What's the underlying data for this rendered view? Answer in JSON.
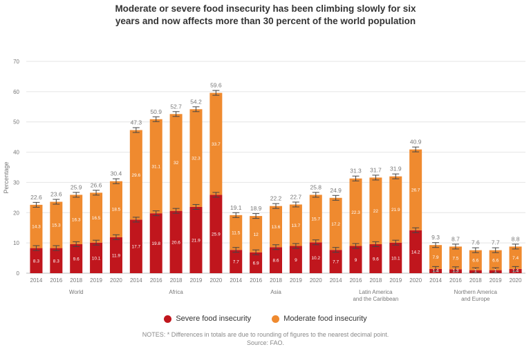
{
  "chart_data": {
    "type": "bar",
    "stacked": true,
    "title_line1": "Moderate or severe food insecurity has been climbing slowly for six",
    "title_line2": "years and now affects more than 30 percent of the world population",
    "ylabel": "Percentage",
    "ylim": [
      0,
      70
    ],
    "yticks": [
      0,
      10,
      20,
      30,
      40,
      50,
      60,
      70
    ],
    "grid": true,
    "legend_position": "bottom",
    "colors": {
      "severe": "#c0161d",
      "moderate": "#ef8a2f"
    },
    "series": [
      {
        "key": "severe",
        "name": "Severe food insecurity"
      },
      {
        "key": "moderate",
        "name": "Moderate food insecurity"
      }
    ],
    "groups": [
      {
        "label": [
          "World"
        ],
        "bars": [
          {
            "x": "2014",
            "severe": 8.3,
            "moderate": 14.3,
            "total": 22.6
          },
          {
            "x": "2016",
            "severe": 8.3,
            "moderate": 15.3,
            "total": 23.6
          },
          {
            "x": "2018",
            "severe": 9.6,
            "moderate": 16.3,
            "total": 25.9
          },
          {
            "x": "2019",
            "severe": 10.1,
            "moderate": 16.5,
            "total": 26.6
          },
          {
            "x": "2020",
            "severe": 11.9,
            "moderate": 18.5,
            "total": 30.4
          }
        ]
      },
      {
        "label": [
          "Africa"
        ],
        "bars": [
          {
            "x": "2014",
            "severe": 17.7,
            "moderate": 29.6,
            "total": 47.3
          },
          {
            "x": "2016",
            "severe": 19.8,
            "moderate": 31.1,
            "total": 50.9
          },
          {
            "x": "2018",
            "severe": 20.6,
            "moderate": 32,
            "total": 52.7
          },
          {
            "x": "2019",
            "severe": 21.9,
            "moderate": 32.3,
            "total": 54.2
          },
          {
            "x": "2020",
            "severe": 25.9,
            "moderate": 33.7,
            "total": 59.6
          }
        ]
      },
      {
        "label": [
          "Asia"
        ],
        "bars": [
          {
            "x": "2014",
            "severe": 7.7,
            "moderate": 11.5,
            "total": 19.1
          },
          {
            "x": "2016",
            "severe": 6.9,
            "moderate": 12,
            "total": 18.9
          },
          {
            "x": "2018",
            "severe": 8.6,
            "moderate": 13.6,
            "total": 22.2
          },
          {
            "x": "2019",
            "severe": 9,
            "moderate": 13.7,
            "total": 22.7
          },
          {
            "x": "2020",
            "severe": 10.2,
            "moderate": 15.7,
            "total": 25.8
          }
        ]
      },
      {
        "label": [
          "Latin America",
          "and the Caribbean"
        ],
        "bars": [
          {
            "x": "2014",
            "severe": 7.7,
            "moderate": 17.2,
            "total": 24.9
          },
          {
            "x": "2016",
            "severe": 9,
            "moderate": 22.3,
            "total": 31.3
          },
          {
            "x": "2018",
            "severe": 9.6,
            "moderate": 22,
            "total": 31.7
          },
          {
            "x": "2019",
            "severe": 10.1,
            "moderate": 21.9,
            "total": 31.9
          },
          {
            "x": "2020",
            "severe": 14.2,
            "moderate": 26.7,
            "total": 40.9
          }
        ]
      },
      {
        "label": [
          "Northern America",
          "and Europe"
        ],
        "bars": [
          {
            "x": "2014",
            "severe": 1.4,
            "moderate": 7.9,
            "total": 9.3
          },
          {
            "x": "2016",
            "severe": 1.3,
            "moderate": 7.5,
            "total": 8.7
          },
          {
            "x": "2018",
            "severe": 1,
            "moderate": 6.6,
            "total": 7.6
          },
          {
            "x": "2019",
            "severe": 1,
            "moderate": 6.6,
            "total": 7.7
          },
          {
            "x": "2020",
            "severe": 1.4,
            "moderate": 7.4,
            "total": 8.8
          }
        ]
      }
    ]
  },
  "notes": {
    "line1": "NOTES: * Differences in totals are due to rounding of figures to the nearest decimal point.",
    "line2": "Source: FAO."
  }
}
